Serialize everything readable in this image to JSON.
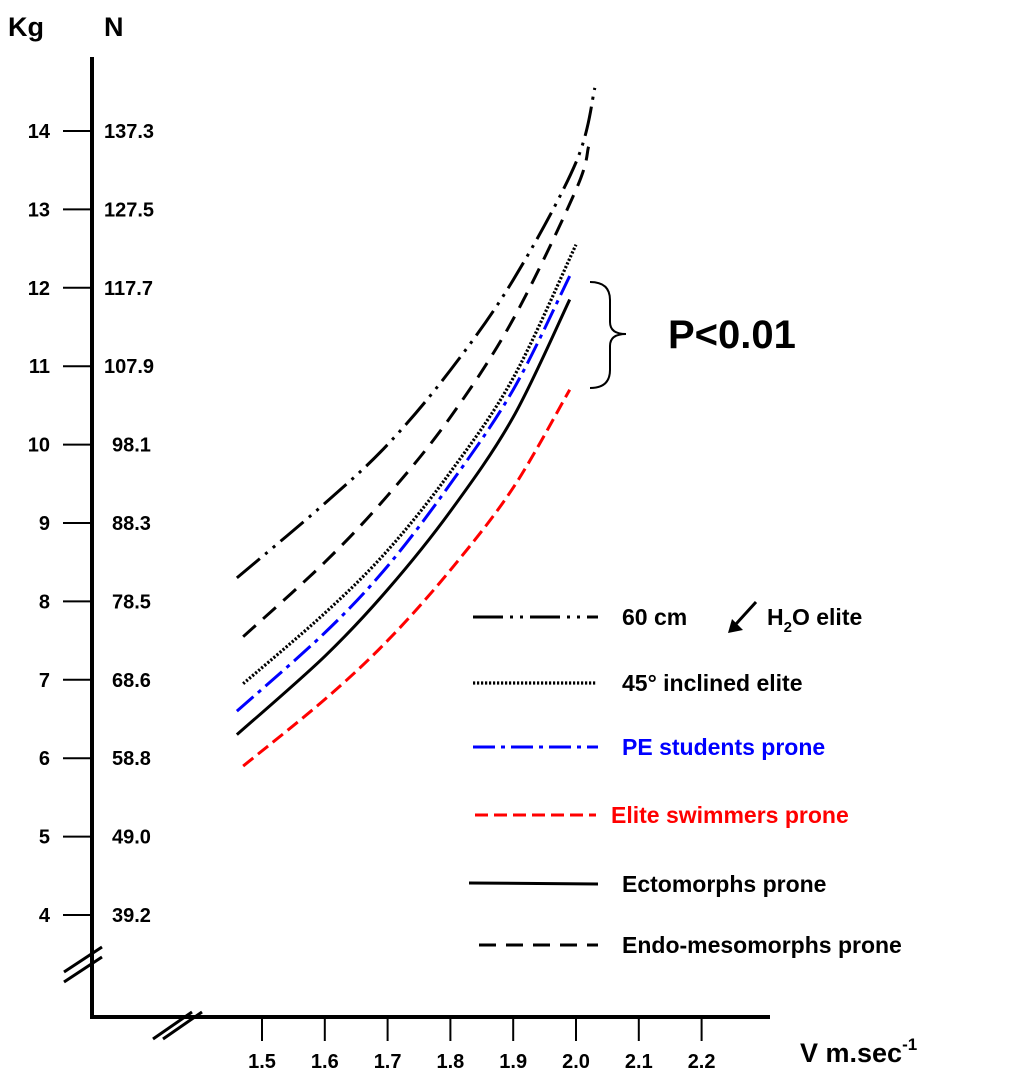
{
  "chart_data": {
    "type": "line",
    "title": "",
    "y_axis_labels": {
      "kg": "Kg",
      "newton": "N"
    },
    "x_axis_label": {
      "main": "V m.sec",
      "superscript": "-1"
    },
    "x_ticks": [
      "1.5",
      "1.6",
      "1.7",
      "1.8",
      "1.9",
      "2.0",
      "2.1",
      "2.2"
    ],
    "y_ticks_kg": [
      "4",
      "5",
      "6",
      "7",
      "8",
      "9",
      "10",
      "11",
      "12",
      "13",
      "14"
    ],
    "y_ticks_newton": [
      "39.2",
      "49.0",
      "58.8",
      "68.6",
      "78.5",
      "88.3",
      "98.1",
      "107.9",
      "117.7",
      "127.5",
      "137.3"
    ],
    "xlim": [
      1.5,
      2.2
    ],
    "ylim": [
      4,
      14
    ],
    "grid": false,
    "legend_position": "bottom-right",
    "annotation": "P<0.01",
    "series": [
      {
        "name_parts": [
          "60 cm ",
          "H",
          "2",
          "O elite"
        ],
        "style": "dash-dot-dot",
        "color": "#000000",
        "x": [
          1.46,
          1.6,
          1.7,
          1.8,
          1.9,
          2.0,
          2.03
        ],
        "y": [
          8.3,
          9.25,
          10.0,
          10.95,
          12.1,
          13.6,
          14.55
        ]
      },
      {
        "name": "45° inclined elite",
        "style": "dotted",
        "color": "#000000",
        "x": [
          1.47,
          1.6,
          1.7,
          1.8,
          1.9,
          2.0
        ],
        "y": [
          6.95,
          7.85,
          8.65,
          9.65,
          10.85,
          12.55
        ]
      },
      {
        "name": "PE students prone",
        "style": "dash-dot",
        "color": "#0000ff",
        "x": [
          1.46,
          1.6,
          1.7,
          1.8,
          1.9,
          1.99
        ],
        "y": [
          6.6,
          7.6,
          8.45,
          9.5,
          10.7,
          12.15
        ]
      },
      {
        "name": "Elite swimmers prone",
        "style": "short-dash",
        "color": "#ff0000",
        "x": [
          1.47,
          1.6,
          1.7,
          1.8,
          1.9,
          1.99
        ],
        "y": [
          5.9,
          6.75,
          7.5,
          8.4,
          9.45,
          10.7
        ]
      },
      {
        "name": "Ectomorphs prone",
        "style": "solid",
        "color": "#000000",
        "x": [
          1.46,
          1.6,
          1.7,
          1.8,
          1.9,
          1.99
        ],
        "y": [
          6.3,
          7.3,
          8.15,
          9.15,
          10.35,
          11.85
        ]
      },
      {
        "name": "Endo-mesomorphs prone",
        "style": "long-dash",
        "color": "#000000",
        "x": [
          1.47,
          1.6,
          1.7,
          1.8,
          1.9,
          2.0,
          2.02
        ],
        "y": [
          7.55,
          8.5,
          9.35,
          10.35,
          11.6,
          13.25,
          13.8
        ]
      }
    ]
  }
}
